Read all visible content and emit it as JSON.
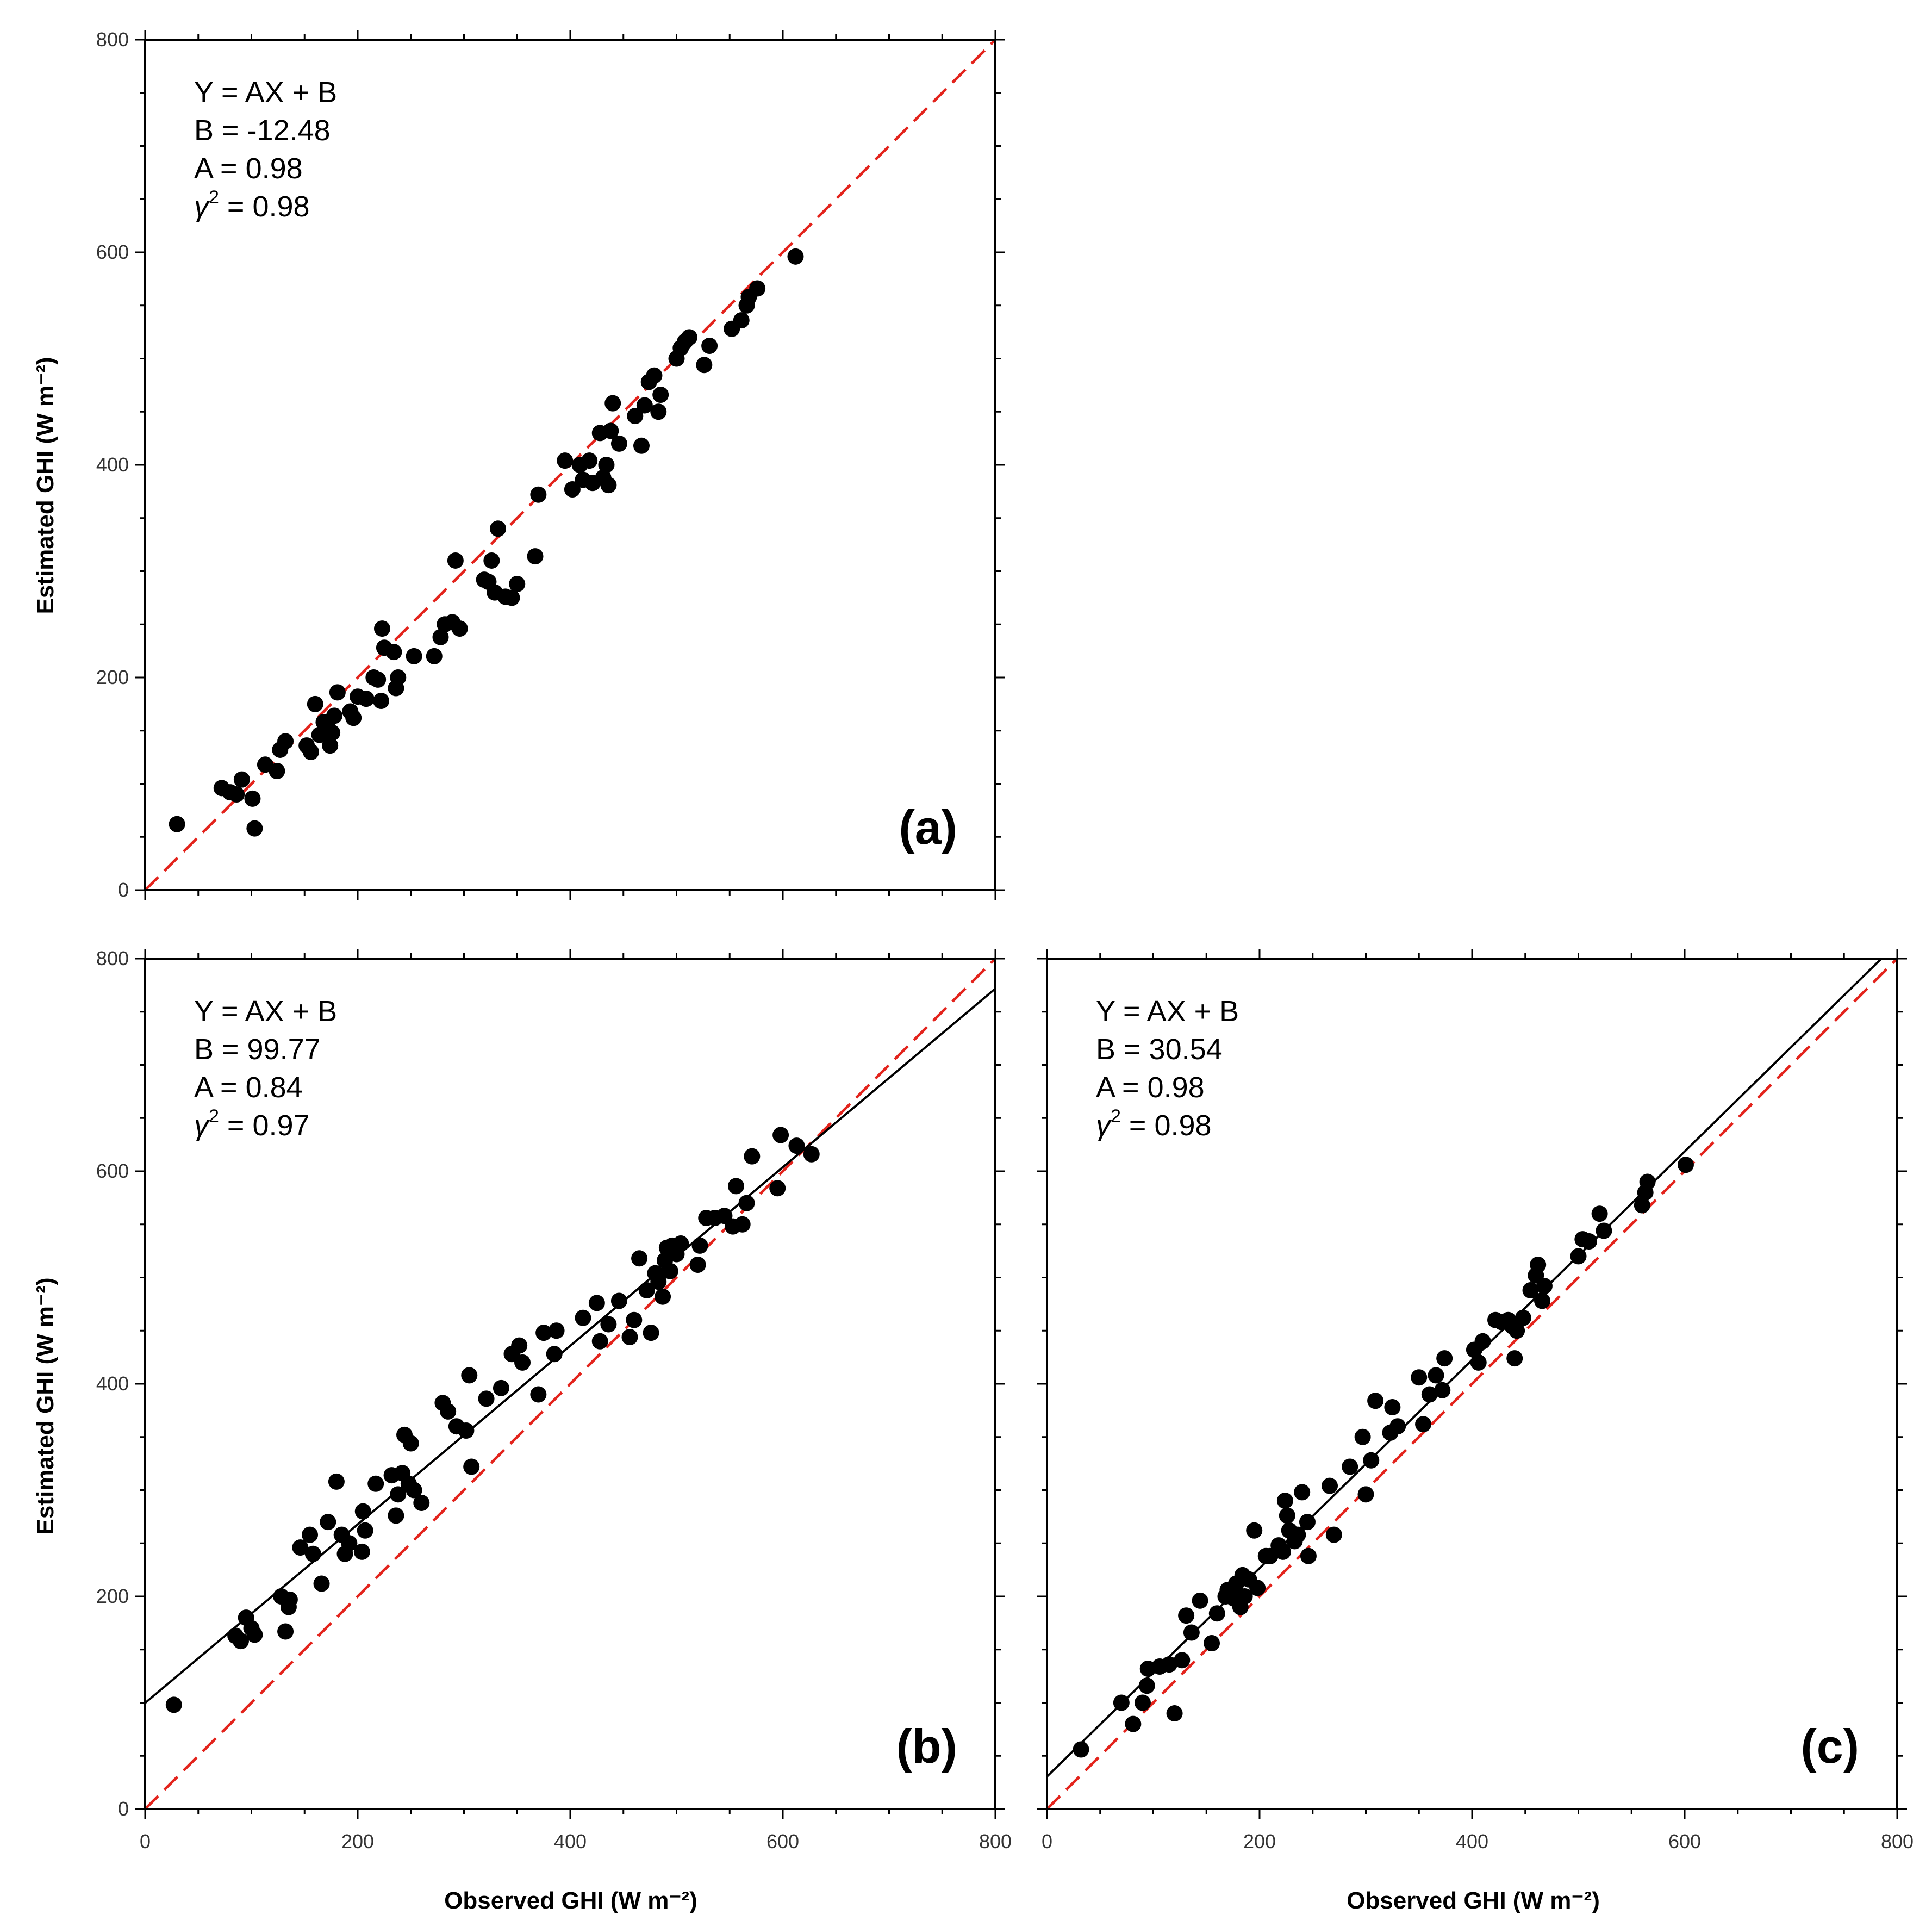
{
  "figure": {
    "x_axis_title": "Observed GHI (W m⁻²)",
    "y_axis_title": "Estimated GHI (W m⁻²)"
  },
  "chart_data": [
    {
      "id": "a",
      "type": "scatter",
      "panel_label": "(a)",
      "equation_lines": [
        "Y = AX + B",
        "B = -12.48",
        "A = 0.98"
      ],
      "r2_symbol": "γ",
      "r2_superscript": "2",
      "r2_value": " = 0.98",
      "regression": {
        "intercept": -12.48,
        "slope": 0.98,
        "shown": false
      },
      "reference_line": {
        "from": [
          0,
          0
        ],
        "to": [
          800,
          800
        ],
        "style": "dashed",
        "color": "#e3231c"
      },
      "xlim": [
        0,
        800
      ],
      "ylim": [
        0,
        800
      ],
      "x_ticks": [
        0,
        200,
        400,
        600,
        800
      ],
      "y_ticks": [
        "0",
        "200",
        "400",
        "600",
        "800"
      ],
      "x_tick_labels_shown": false,
      "points": [
        [
          30,
          62
        ],
        [
          72,
          96
        ],
        [
          80,
          92
        ],
        [
          86,
          90
        ],
        [
          91,
          104
        ],
        [
          101,
          86
        ],
        [
          103,
          58
        ],
        [
          113,
          118
        ],
        [
          124,
          112
        ],
        [
          127,
          132
        ],
        [
          132,
          140
        ],
        [
          152,
          136
        ],
        [
          156,
          130
        ],
        [
          160,
          175
        ],
        [
          164,
          146
        ],
        [
          168,
          158
        ],
        [
          172,
          152
        ],
        [
          174,
          136
        ],
        [
          176,
          148
        ],
        [
          178,
          164
        ],
        [
          181,
          186
        ],
        [
          193,
          168
        ],
        [
          196,
          162
        ],
        [
          200,
          182
        ],
        [
          208,
          180
        ],
        [
          215,
          200
        ],
        [
          219,
          198
        ],
        [
          222,
          178
        ],
        [
          223,
          246
        ],
        [
          225,
          228
        ],
        [
          234,
          224
        ],
        [
          236,
          190
        ],
        [
          238,
          200
        ],
        [
          253,
          220
        ],
        [
          272,
          220
        ],
        [
          278,
          238
        ],
        [
          282,
          250
        ],
        [
          289,
          252
        ],
        [
          292,
          310
        ],
        [
          296,
          246
        ],
        [
          319,
          292
        ],
        [
          323,
          290
        ],
        [
          326,
          310
        ],
        [
          329,
          280
        ],
        [
          332,
          340
        ],
        [
          339,
          276
        ],
        [
          345,
          275
        ],
        [
          350,
          288
        ],
        [
          367,
          314
        ],
        [
          370,
          372
        ],
        [
          395,
          404
        ],
        [
          402,
          377
        ],
        [
          409,
          400
        ],
        [
          412,
          386
        ],
        [
          418,
          404
        ],
        [
          421,
          383
        ],
        [
          428,
          430
        ],
        [
          431,
          388
        ],
        [
          434,
          400
        ],
        [
          436,
          381
        ],
        [
          438,
          432
        ],
        [
          440,
          458
        ],
        [
          446,
          420
        ],
        [
          461,
          446
        ],
        [
          467,
          418
        ],
        [
          470,
          456
        ],
        [
          474,
          478
        ],
        [
          479,
          484
        ],
        [
          483,
          450
        ],
        [
          485,
          466
        ],
        [
          500,
          500
        ],
        [
          504,
          510
        ],
        [
          508,
          516
        ],
        [
          512,
          520
        ],
        [
          526,
          494
        ],
        [
          531,
          512
        ],
        [
          552,
          528
        ],
        [
          561,
          536
        ],
        [
          566,
          550
        ],
        [
          568,
          558
        ],
        [
          576,
          566
        ],
        [
          612,
          596
        ]
      ]
    },
    {
      "id": "b",
      "type": "scatter",
      "panel_label": "(b)",
      "equation_lines": [
        "Y = AX + B",
        "B = 99.77",
        "A = 0.84"
      ],
      "r2_symbol": "γ",
      "r2_superscript": "2",
      "r2_value": " = 0.97",
      "regression": {
        "intercept": 99.77,
        "slope": 0.84,
        "shown": true
      },
      "reference_line": {
        "from": [
          0,
          0
        ],
        "to": [
          800,
          800
        ],
        "style": "dashed",
        "color": "#e3231c"
      },
      "xlim": [
        0,
        800
      ],
      "ylim": [
        0,
        800
      ],
      "x_ticks": [
        0,
        200,
        400,
        600,
        800
      ],
      "x_tick_labels": [
        "0",
        "200",
        "400",
        "600",
        "800"
      ],
      "y_ticks": [
        "0",
        "200",
        "400",
        "600",
        "800"
      ],
      "points": [
        [
          27,
          98
        ],
        [
          85,
          163
        ],
        [
          90,
          158
        ],
        [
          95,
          180
        ],
        [
          100,
          170
        ],
        [
          103,
          164
        ],
        [
          128,
          200
        ],
        [
          132,
          167
        ],
        [
          135,
          190
        ],
        [
          136,
          197
        ],
        [
          146,
          246
        ],
        [
          155,
          258
        ],
        [
          158,
          240
        ],
        [
          166,
          212
        ],
        [
          172,
          270
        ],
        [
          180,
          308
        ],
        [
          185,
          258
        ],
        [
          188,
          240
        ],
        [
          192,
          250
        ],
        [
          204,
          242
        ],
        [
          205,
          280
        ],
        [
          207,
          262
        ],
        [
          217,
          306
        ],
        [
          232,
          314
        ],
        [
          236,
          276
        ],
        [
          238,
          296
        ],
        [
          242,
          316
        ],
        [
          244,
          352
        ],
        [
          248,
          306
        ],
        [
          250,
          344
        ],
        [
          253,
          300
        ],
        [
          260,
          288
        ],
        [
          280,
          382
        ],
        [
          285,
          374
        ],
        [
          293,
          360
        ],
        [
          302,
          356
        ],
        [
          305,
          408
        ],
        [
          307,
          322
        ],
        [
          321,
          386
        ],
        [
          335,
          396
        ],
        [
          345,
          428
        ],
        [
          352,
          436
        ],
        [
          355,
          420
        ],
        [
          370,
          390
        ],
        [
          375,
          448
        ],
        [
          385,
          428
        ],
        [
          387,
          450
        ],
        [
          412,
          462
        ],
        [
          425,
          476
        ],
        [
          428,
          440
        ],
        [
          436,
          456
        ],
        [
          446,
          478
        ],
        [
          456,
          444
        ],
        [
          460,
          460
        ],
        [
          465,
          518
        ],
        [
          472,
          488
        ],
        [
          476,
          448
        ],
        [
          480,
          504
        ],
        [
          483,
          496
        ],
        [
          487,
          482
        ],
        [
          489,
          516
        ],
        [
          491,
          528
        ],
        [
          494,
          506
        ],
        [
          496,
          530
        ],
        [
          500,
          522
        ],
        [
          504,
          532
        ],
        [
          520,
          512
        ],
        [
          522,
          530
        ],
        [
          528,
          556
        ],
        [
          536,
          556
        ],
        [
          545,
          558
        ],
        [
          553,
          548
        ],
        [
          556,
          586
        ],
        [
          562,
          550
        ],
        [
          566,
          570
        ],
        [
          571,
          614
        ],
        [
          595,
          584
        ],
        [
          598,
          634
        ],
        [
          613,
          624
        ],
        [
          627,
          616
        ]
      ]
    },
    {
      "id": "c",
      "type": "scatter",
      "panel_label": "(c)",
      "equation_lines": [
        "Y = AX + B",
        "B = 30.54",
        "A = 0.98"
      ],
      "r2_symbol": "γ",
      "r2_superscript": "2",
      "r2_value": " = 0.98",
      "regression": {
        "intercept": 30.54,
        "slope": 0.98,
        "shown": true
      },
      "reference_line": {
        "from": [
          0,
          0
        ],
        "to": [
          800,
          800
        ],
        "style": "dashed",
        "color": "#e3231c"
      },
      "xlim": [
        0,
        800
      ],
      "ylim": [
        0,
        800
      ],
      "x_ticks": [
        0,
        200,
        400,
        600,
        800
      ],
      "x_tick_labels": [
        "0",
        "200",
        "400",
        "600",
        "800"
      ],
      "y_ticks": [
        "0",
        "200",
        "400",
        "600",
        "800"
      ],
      "y_tick_labels_shown": false,
      "points": [
        [
          32,
          56
        ],
        [
          70,
          100
        ],
        [
          81,
          80
        ],
        [
          90,
          100
        ],
        [
          94,
          116
        ],
        [
          95,
          132
        ],
        [
          106,
          134
        ],
        [
          115,
          136
        ],
        [
          120,
          90
        ],
        [
          127,
          140
        ],
        [
          131,
          182
        ],
        [
          136,
          166
        ],
        [
          144,
          196
        ],
        [
          155,
          156
        ],
        [
          160,
          184
        ],
        [
          168,
          200
        ],
        [
          170,
          206
        ],
        [
          176,
          198
        ],
        [
          178,
          212
        ],
        [
          182,
          190
        ],
        [
          184,
          220
        ],
        [
          186,
          200
        ],
        [
          190,
          216
        ],
        [
          195,
          262
        ],
        [
          198,
          208
        ],
        [
          206,
          238
        ],
        [
          210,
          238
        ],
        [
          218,
          248
        ],
        [
          222,
          242
        ],
        [
          224,
          290
        ],
        [
          226,
          276
        ],
        [
          228,
          262
        ],
        [
          233,
          252
        ],
        [
          236,
          258
        ],
        [
          240,
          298
        ],
        [
          245,
          270
        ],
        [
          246,
          238
        ],
        [
          266,
          304
        ],
        [
          270,
          258
        ],
        [
          285,
          322
        ],
        [
          297,
          350
        ],
        [
          300,
          296
        ],
        [
          305,
          328
        ],
        [
          309,
          384
        ],
        [
          323,
          354
        ],
        [
          325,
          378
        ],
        [
          330,
          360
        ],
        [
          350,
          406
        ],
        [
          354,
          362
        ],
        [
          360,
          390
        ],
        [
          366,
          408
        ],
        [
          372,
          394
        ],
        [
          374,
          424
        ],
        [
          402,
          432
        ],
        [
          406,
          420
        ],
        [
          410,
          440
        ],
        [
          422,
          460
        ],
        [
          428,
          458
        ],
        [
          434,
          460
        ],
        [
          438,
          454
        ],
        [
          440,
          424
        ],
        [
          442,
          450
        ],
        [
          448,
          462
        ],
        [
          455,
          488
        ],
        [
          460,
          502
        ],
        [
          462,
          512
        ],
        [
          466,
          478
        ],
        [
          468,
          492
        ],
        [
          500,
          520
        ],
        [
          504,
          536
        ],
        [
          510,
          534
        ],
        [
          520,
          560
        ],
        [
          524,
          544
        ],
        [
          560,
          568
        ],
        [
          563,
          580
        ],
        [
          565,
          590
        ],
        [
          601,
          606
        ]
      ]
    }
  ]
}
